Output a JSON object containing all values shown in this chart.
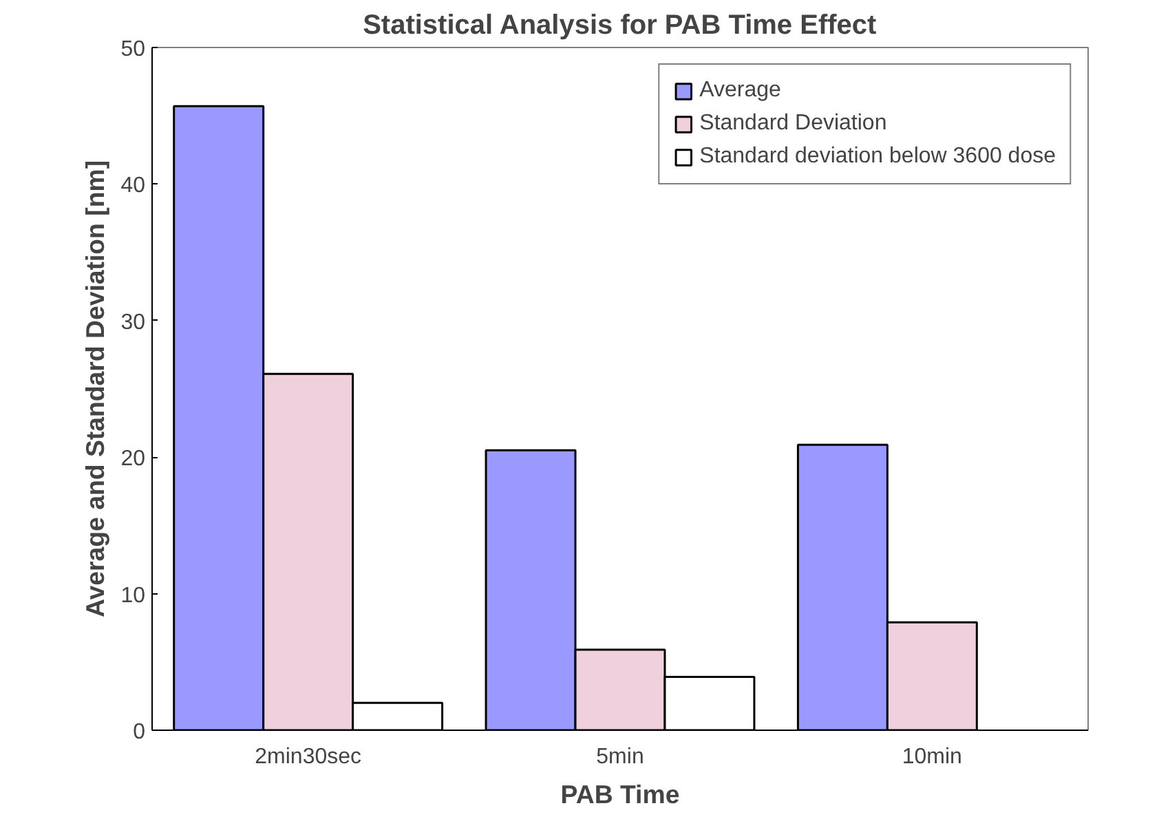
{
  "chart_data": {
    "type": "bar",
    "title": "Statistical Analysis for PAB Time Effect",
    "xlabel": "PAB Time",
    "ylabel": "Average and Standard Deviation [nm]",
    "categories": [
      "2min30sec",
      "5min",
      "10min"
    ],
    "series": [
      {
        "name": "Average",
        "color": "#9999ff",
        "values": [
          45.7,
          20.5,
          20.9
        ]
      },
      {
        "name": "Standard Deviation",
        "color": "#f0d0dc",
        "values": [
          26.1,
          5.9,
          7.9
        ]
      },
      {
        "name": "Standard deviation below 3600 dose",
        "color": "#ffffff",
        "values": [
          2.0,
          3.9,
          null
        ]
      }
    ],
    "ylim": [
      0,
      50
    ],
    "yticks": [
      0,
      10,
      20,
      30,
      40,
      50
    ],
    "grid": false,
    "legend": "top right"
  }
}
